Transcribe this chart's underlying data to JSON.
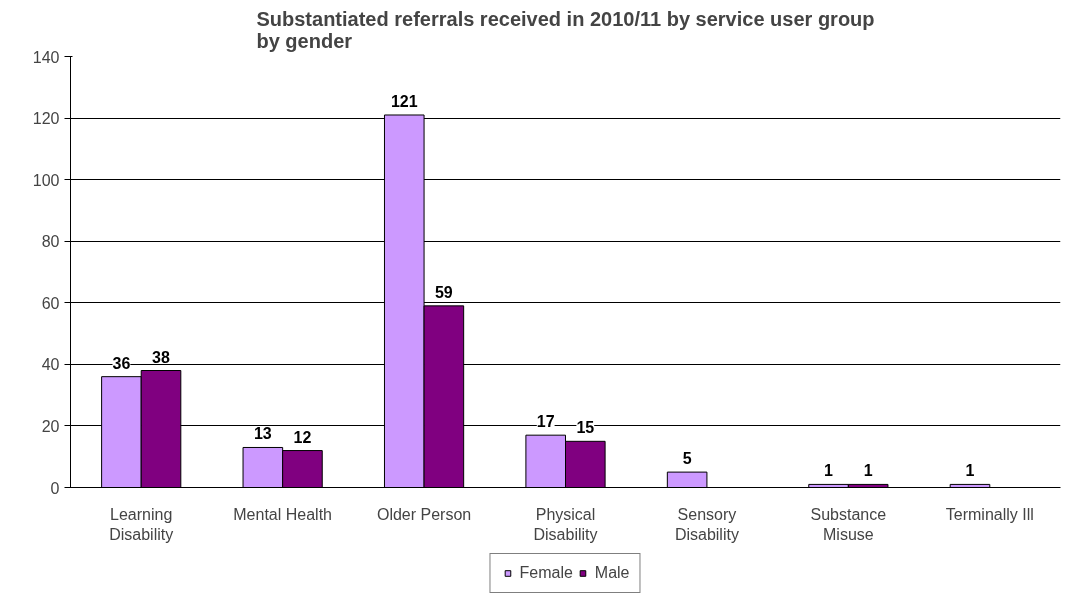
{
  "chart_data": {
    "type": "bar",
    "title": "Substantiated referrals received in 2010/11 by service user group by gender",
    "categories": [
      "Learning Disability",
      "Mental Health",
      "Older Person",
      "Physical Disability",
      "Sensory Disability",
      "Substance Misuse",
      "Terminally Ill"
    ],
    "series": [
      {
        "name": "Female",
        "color": "#cc99ff",
        "values": [
          36,
          13,
          121,
          17,
          5,
          1,
          1
        ]
      },
      {
        "name": "Male",
        "color": "#800080",
        "values": [
          38,
          12,
          59,
          15,
          null,
          1,
          null
        ]
      }
    ],
    "ylim": [
      0,
      140
    ],
    "yticks": [
      0,
      20,
      40,
      60,
      80,
      100,
      120,
      140
    ],
    "grid": "y",
    "legend": "bottom",
    "data_labels": true
  }
}
